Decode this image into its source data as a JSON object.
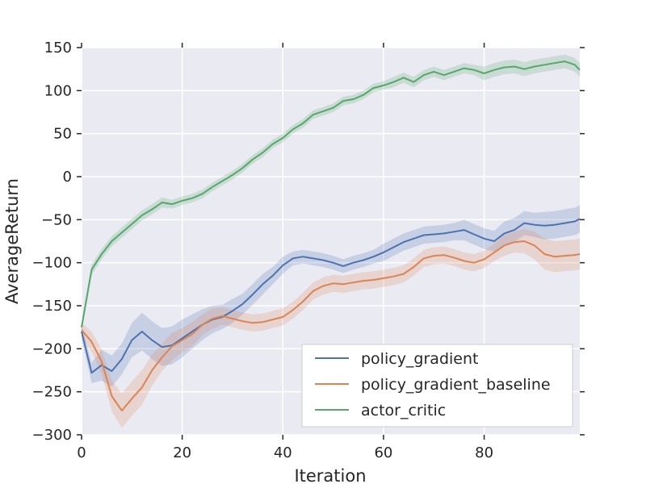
{
  "chart_data": {
    "type": "line",
    "title": "",
    "xlabel": "Iteration",
    "ylabel": "AverageReturn",
    "xlim": [
      0,
      99
    ],
    "ylim": [
      -300,
      150
    ],
    "xticks": [
      0,
      20,
      40,
      60,
      80
    ],
    "yticks": [
      150,
      100,
      50,
      0,
      -50,
      -100,
      -150,
      -200,
      -250,
      -300
    ],
    "grid": true,
    "legend_position": "lower-right",
    "x": [
      0,
      2,
      4,
      6,
      8,
      10,
      12,
      14,
      16,
      18,
      20,
      22,
      24,
      26,
      28,
      30,
      32,
      34,
      36,
      38,
      40,
      42,
      44,
      46,
      48,
      50,
      52,
      54,
      56,
      58,
      60,
      62,
      64,
      66,
      68,
      70,
      72,
      74,
      76,
      78,
      80,
      82,
      84,
      86,
      88,
      90,
      92,
      94,
      96,
      98,
      99
    ],
    "series": [
      {
        "name": "policy_gradient",
        "color": "#4c72b0",
        "values": [
          -180,
          -228,
          -219,
          -226,
          -212,
          -190,
          -180,
          -190,
          -198,
          -196,
          -188,
          -180,
          -172,
          -166,
          -163,
          -156,
          -148,
          -137,
          -125,
          -115,
          -103,
          -95,
          -93,
          -95,
          -97,
          -100,
          -104,
          -100,
          -97,
          -93,
          -88,
          -82,
          -76,
          -72,
          -68,
          -67,
          -66,
          -64,
          -62,
          -67,
          -72,
          -75,
          -66,
          -62,
          -54,
          -56,
          -57,
          -56,
          -54,
          -52,
          -49
        ],
        "band": [
          8,
          12,
          18,
          18,
          18,
          20,
          22,
          22,
          22,
          22,
          22,
          20,
          18,
          16,
          14,
          14,
          12,
          12,
          12,
          10,
          10,
          8,
          8,
          8,
          8,
          8,
          8,
          8,
          8,
          8,
          10,
          10,
          10,
          10,
          10,
          10,
          10,
          10,
          12,
          12,
          12,
          12,
          14,
          14,
          14,
          14,
          16,
          16,
          16,
          16,
          16
        ]
      },
      {
        "name": "policy_gradient_baseline",
        "color": "#dd8452",
        "values": [
          -178,
          -192,
          -215,
          -255,
          -272,
          -258,
          -245,
          -225,
          -210,
          -197,
          -190,
          -183,
          -172,
          -165,
          -162,
          -165,
          -168,
          -170,
          -169,
          -166,
          -163,
          -155,
          -145,
          -133,
          -127,
          -124,
          -125,
          -123,
          -121,
          -120,
          -118,
          -116,
          -113,
          -105,
          -95,
          -92,
          -91,
          -94,
          -98,
          -100,
          -96,
          -88,
          -80,
          -76,
          -75,
          -80,
          -90,
          -93,
          -92,
          -91,
          -90
        ],
        "band": [
          8,
          12,
          14,
          18,
          20,
          20,
          20,
          18,
          16,
          16,
          14,
          14,
          12,
          12,
          10,
          10,
          10,
          10,
          10,
          10,
          10,
          10,
          10,
          10,
          10,
          10,
          10,
          10,
          10,
          10,
          10,
          10,
          10,
          10,
          10,
          10,
          10,
          10,
          10,
          10,
          10,
          10,
          12,
          12,
          14,
          16,
          18,
          18,
          18,
          18,
          18
        ]
      },
      {
        "name": "actor_critic",
        "color": "#55a868",
        "values": [
          -175,
          -108,
          -90,
          -75,
          -65,
          -55,
          -45,
          -38,
          -30,
          -32,
          -28,
          -25,
          -20,
          -12,
          -5,
          2,
          10,
          20,
          28,
          38,
          45,
          55,
          62,
          72,
          76,
          80,
          88,
          90,
          95,
          103,
          106,
          110,
          115,
          110,
          118,
          122,
          118,
          122,
          126,
          124,
          120,
          124,
          127,
          128,
          125,
          128,
          130,
          132,
          134,
          130,
          124
        ],
        "band": [
          6,
          6,
          6,
          6,
          6,
          6,
          6,
          6,
          6,
          5,
          5,
          5,
          5,
          5,
          5,
          5,
          5,
          5,
          5,
          5,
          5,
          5,
          5,
          5,
          5,
          5,
          5,
          5,
          5,
          5,
          5,
          6,
          6,
          6,
          6,
          6,
          6,
          6,
          6,
          6,
          8,
          8,
          8,
          8,
          8,
          8,
          8,
          8,
          8,
          8,
          8
        ]
      }
    ]
  }
}
